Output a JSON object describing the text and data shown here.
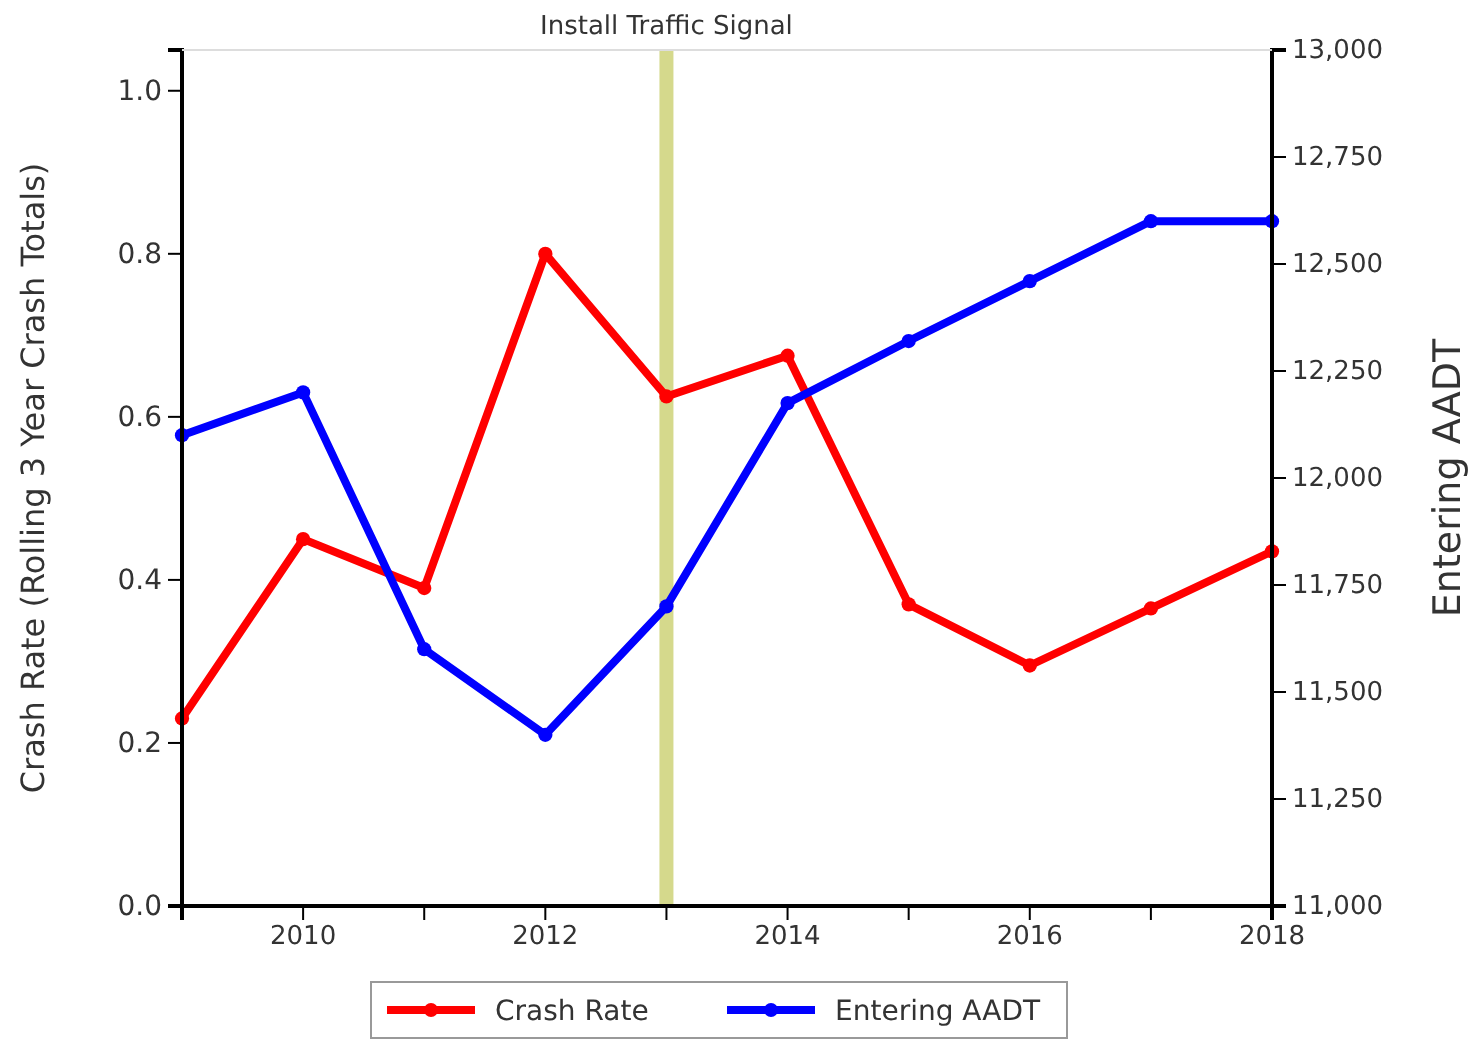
{
  "chart_data": {
    "type": "line",
    "ylabel": "Crash Rate (Rolling 3 Year Crash Totals)",
    "y2label": "Entering AADT",
    "x": [
      2009,
      2010,
      2011,
      2012,
      2013,
      2014,
      2015,
      2016,
      2017,
      2018
    ],
    "series": [
      {
        "name": "Crash Rate",
        "color": "#ff0000",
        "values": [
          0.23,
          0.45,
          0.39,
          0.8,
          0.625,
          0.675,
          0.37,
          0.295,
          0.365,
          0.435
        ]
      },
      {
        "name": "Entering AADT",
        "color": "#0000ff",
        "axis": "y2",
        "values": [
          12100,
          12200,
          11600,
          11400,
          11700,
          12175,
          12320,
          12460,
          12600,
          12600
        ]
      }
    ],
    "xlim": [
      2009,
      2018
    ],
    "xticks": [
      {
        "value": 2009,
        "label": null
      },
      2010,
      {
        "value": 2011,
        "label": null
      },
      2012,
      {
        "value": 2013,
        "label": null
      },
      2014,
      {
        "value": 2015,
        "label": null
      },
      2016,
      {
        "value": 2017,
        "label": null
      },
      2018
    ],
    "ylim": [
      0,
      1.05
    ],
    "yticks": [
      {
        "value": 0,
        "label": "0.0"
      },
      0.2,
      0.4,
      0.6,
      0.8,
      {
        "value": 1,
        "label": "1.0"
      }
    ],
    "y2lim": [
      11000,
      13000
    ],
    "y2ticks": [
      {
        "value": 11000,
        "label": "11,000"
      },
      {
        "value": 11250,
        "label": "11,250"
      },
      {
        "value": 11500,
        "label": "11,500"
      },
      {
        "value": 11750,
        "label": "11,750"
      },
      {
        "value": 12000,
        "label": "12,000"
      },
      {
        "value": 12250,
        "label": "12,250"
      },
      {
        "value": 12500,
        "label": "12,500"
      },
      {
        "value": 12750,
        "label": "12,750"
      },
      {
        "value": 13000,
        "label": "13,000"
      }
    ],
    "ref_lines": [
      {
        "axis": "x",
        "value": 2013,
        "label": "Install Traffic Signal",
        "color": "#d5d98c"
      }
    ],
    "legend": "bottom",
    "marker": "circle",
    "line_style": "solid",
    "grid": false
  }
}
